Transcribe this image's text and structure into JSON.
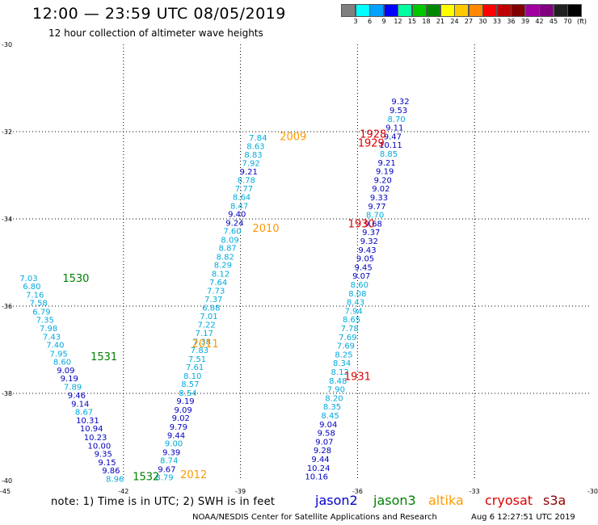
{
  "header": {
    "title": "12:00 — 23:59 UTC 08/05/2019",
    "subtitle": "12 hour collection of altimeter wave heights"
  },
  "color_scale": {
    "colors": [
      "#808080",
      "#00ffff",
      "#00a0ff",
      "#0000ff",
      "#00ffa0",
      "#00c800",
      "#008800",
      "#ffff00",
      "#ffc800",
      "#ff8800",
      "#ff0000",
      "#c00000",
      "#800000",
      "#a000a0",
      "#800080",
      "#202020",
      "#000000"
    ],
    "labels": [
      "3",
      "6",
      "9",
      "12",
      "15",
      "18",
      "21",
      "24",
      "27",
      "30",
      "33",
      "36",
      "39",
      "42",
      "45",
      "70",
      "(ft)"
    ]
  },
  "footer": {
    "note": "note:  1)  Time is in UTC;  2)  SWH is in feet",
    "legend": [
      {
        "name": "jason2",
        "color": "#0000c8"
      },
      {
        "name": "jason3",
        "color": "#008000"
      },
      {
        "name": "altika",
        "color": "#ff9900"
      },
      {
        "name": "cryosat",
        "color": "#dd0000"
      },
      {
        "name": "s3a",
        "color": "#8b0000"
      }
    ],
    "credit": "NOAA/NESDIS Center for Satellite Applications and Research",
    "timestamp": "Aug  6 12:27:51 UTC 2019"
  },
  "chart_data": {
    "type": "scatter",
    "xlim": [
      -45,
      -30
    ],
    "ylim": [
      -40,
      -30
    ],
    "xticks": [
      -45,
      -42,
      -39,
      -36,
      -33,
      -30
    ],
    "yticks": [
      -30,
      -32,
      -34,
      -36,
      -38,
      -40
    ],
    "grid": true,
    "colors": {
      "light": "#00aadd",
      "dark": "#0000c0",
      "green": "#008000",
      "orange": "#ff9900",
      "red": "#dd0000"
    },
    "tracks": [
      {
        "values": [
          {
            "x": -44.43,
            "y": -35.35,
            "v": "7.03",
            "c": "light"
          },
          {
            "x": -44.35,
            "y": -35.54,
            "v": "6.80",
            "c": "light"
          },
          {
            "x": -44.27,
            "y": -35.73,
            "v": "7.16",
            "c": "light"
          },
          {
            "x": -44.18,
            "y": -35.92,
            "v": "7.58",
            "c": "light"
          },
          {
            "x": -44.1,
            "y": -36.12,
            "v": "6.79",
            "c": "light"
          },
          {
            "x": -44.01,
            "y": -36.31,
            "v": "7.35",
            "c": "light"
          },
          {
            "x": -43.92,
            "y": -36.5,
            "v": "7.98",
            "c": "light"
          },
          {
            "x": -43.84,
            "y": -36.69,
            "v": "7.43",
            "c": "light"
          },
          {
            "x": -43.75,
            "y": -36.88,
            "v": "7.40",
            "c": "light"
          },
          {
            "x": -43.66,
            "y": -37.08,
            "v": "7.95",
            "c": "light"
          },
          {
            "x": -43.57,
            "y": -37.27,
            "v": "8.60",
            "c": "light"
          },
          {
            "x": -43.48,
            "y": -37.46,
            "v": "9.09",
            "c": "dark"
          },
          {
            "x": -43.39,
            "y": -37.65,
            "v": "9.19",
            "c": "dark"
          },
          {
            "x": -43.3,
            "y": -37.84,
            "v": "7.89",
            "c": "light"
          },
          {
            "x": -43.2,
            "y": -38.04,
            "v": "9.46",
            "c": "dark"
          },
          {
            "x": -43.11,
            "y": -38.23,
            "v": "9.14",
            "c": "dark"
          },
          {
            "x": -43.01,
            "y": -38.42,
            "v": "8.67",
            "c": "light"
          },
          {
            "x": -42.92,
            "y": -38.61,
            "v": "10.31",
            "c": "dark"
          },
          {
            "x": -42.82,
            "y": -38.8,
            "v": "10.94",
            "c": "dark"
          },
          {
            "x": -42.72,
            "y": -39.0,
            "v": "10.23",
            "c": "dark"
          },
          {
            "x": -42.62,
            "y": -39.19,
            "v": "10.00",
            "c": "dark"
          },
          {
            "x": -42.52,
            "y": -39.38,
            "v": "9.35",
            "c": "dark"
          },
          {
            "x": -42.42,
            "y": -39.57,
            "v": "9.15",
            "c": "dark"
          },
          {
            "x": -42.32,
            "y": -39.76,
            "v": "9.86",
            "c": "dark"
          },
          {
            "x": -42.22,
            "y": -39.95,
            "v": "8.96",
            "c": "light"
          }
        ]
      },
      {
        "values": [
          {
            "x": -40.95,
            "y": -39.92,
            "v": "8.79",
            "c": "light"
          },
          {
            "x": -40.89,
            "y": -39.73,
            "v": "9.67",
            "c": "dark"
          },
          {
            "x": -40.83,
            "y": -39.53,
            "v": "8.74",
            "c": "light"
          },
          {
            "x": -40.77,
            "y": -39.34,
            "v": "9.39",
            "c": "dark"
          },
          {
            "x": -40.71,
            "y": -39.14,
            "v": "9.00",
            "c": "light"
          },
          {
            "x": -40.65,
            "y": -38.95,
            "v": "9.44",
            "c": "dark"
          },
          {
            "x": -40.59,
            "y": -38.76,
            "v": "9.79",
            "c": "dark"
          },
          {
            "x": -40.53,
            "y": -38.56,
            "v": "9.02",
            "c": "dark"
          },
          {
            "x": -40.47,
            "y": -38.37,
            "v": "9.09",
            "c": "dark"
          },
          {
            "x": -40.41,
            "y": -38.17,
            "v": "9.19",
            "c": "dark"
          },
          {
            "x": -40.35,
            "y": -37.98,
            "v": "8.54",
            "c": "light"
          },
          {
            "x": -40.29,
            "y": -37.78,
            "v": "8.57",
            "c": "light"
          },
          {
            "x": -40.23,
            "y": -37.59,
            "v": "8.10",
            "c": "light"
          },
          {
            "x": -40.17,
            "y": -37.39,
            "v": "7.61",
            "c": "light"
          },
          {
            "x": -40.11,
            "y": -37.2,
            "v": "7.51",
            "c": "light"
          },
          {
            "x": -40.05,
            "y": -37.0,
            "v": "7.83",
            "c": "light"
          },
          {
            "x": -39.99,
            "y": -36.81,
            "v": "7.38",
            "c": "light"
          },
          {
            "x": -39.93,
            "y": -36.61,
            "v": "7.17",
            "c": "light"
          },
          {
            "x": -39.87,
            "y": -36.42,
            "v": "7.22",
            "c": "light"
          },
          {
            "x": -39.81,
            "y": -36.22,
            "v": "7.01",
            "c": "light"
          },
          {
            "x": -39.75,
            "y": -36.03,
            "v": "6.88",
            "c": "light"
          },
          {
            "x": -39.69,
            "y": -35.83,
            "v": "7.37",
            "c": "light"
          },
          {
            "x": -39.63,
            "y": -35.64,
            "v": "7.73",
            "c": "light"
          },
          {
            "x": -39.57,
            "y": -35.44,
            "v": "7.64",
            "c": "light"
          },
          {
            "x": -39.51,
            "y": -35.25,
            "v": "8.12",
            "c": "light"
          },
          {
            "x": -39.45,
            "y": -35.05,
            "v": "8.29",
            "c": "light"
          },
          {
            "x": -39.39,
            "y": -34.86,
            "v": "8.82",
            "c": "light"
          },
          {
            "x": -39.33,
            "y": -34.66,
            "v": "8.87",
            "c": "light"
          },
          {
            "x": -39.27,
            "y": -34.47,
            "v": "8.09",
            "c": "light"
          },
          {
            "x": -39.21,
            "y": -34.27,
            "v": "7.60",
            "c": "light"
          },
          {
            "x": -39.15,
            "y": -34.08,
            "v": "9.24",
            "c": "dark"
          },
          {
            "x": -39.09,
            "y": -33.88,
            "v": "9.40",
            "c": "dark"
          },
          {
            "x": -39.03,
            "y": -33.69,
            "v": "8.47",
            "c": "light"
          },
          {
            "x": -38.97,
            "y": -33.49,
            "v": "8.64",
            "c": "light"
          },
          {
            "x": -38.91,
            "y": -33.3,
            "v": "7.77",
            "c": "light"
          },
          {
            "x": -38.85,
            "y": -33.1,
            "v": "8.78",
            "c": "light"
          },
          {
            "x": -38.79,
            "y": -32.91,
            "v": "9.21",
            "c": "dark"
          },
          {
            "x": -38.73,
            "y": -32.71,
            "v": "7.92",
            "c": "light"
          },
          {
            "x": -38.67,
            "y": -32.52,
            "v": "8.83",
            "c": "light"
          },
          {
            "x": -38.61,
            "y": -32.32,
            "v": "8.63",
            "c": "light"
          },
          {
            "x": -38.55,
            "y": -32.13,
            "v": "7.84",
            "c": "light"
          }
        ]
      },
      {
        "values": [
          {
            "x": -37.05,
            "y": -39.9,
            "v": "10.16",
            "c": "dark"
          },
          {
            "x": -37.0,
            "y": -39.7,
            "v": "10.24",
            "c": "dark"
          },
          {
            "x": -36.95,
            "y": -39.5,
            "v": "9.44",
            "c": "dark"
          },
          {
            "x": -36.9,
            "y": -39.3,
            "v": "9.28",
            "c": "dark"
          },
          {
            "x": -36.85,
            "y": -39.1,
            "v": "9.07",
            "c": "dark"
          },
          {
            "x": -36.8,
            "y": -38.9,
            "v": "9.58",
            "c": "dark"
          },
          {
            "x": -36.75,
            "y": -38.7,
            "v": "9.04",
            "c": "dark"
          },
          {
            "x": -36.7,
            "y": -38.5,
            "v": "8.45",
            "c": "light"
          },
          {
            "x": -36.65,
            "y": -38.3,
            "v": "8.35",
            "c": "light"
          },
          {
            "x": -36.6,
            "y": -38.1,
            "v": "8.20",
            "c": "light"
          },
          {
            "x": -36.55,
            "y": -37.9,
            "v": "7.90",
            "c": "light"
          },
          {
            "x": -36.5,
            "y": -37.7,
            "v": "8.48",
            "c": "light"
          },
          {
            "x": -36.45,
            "y": -37.5,
            "v": "8.12",
            "c": "light"
          },
          {
            "x": -36.4,
            "y": -37.3,
            "v": "8.34",
            "c": "light"
          },
          {
            "x": -36.35,
            "y": -37.1,
            "v": "8.25",
            "c": "light"
          },
          {
            "x": -36.3,
            "y": -36.9,
            "v": "7.69",
            "c": "light"
          },
          {
            "x": -36.25,
            "y": -36.7,
            "v": "7.69",
            "c": "light"
          },
          {
            "x": -36.2,
            "y": -36.5,
            "v": "7.78",
            "c": "light"
          },
          {
            "x": -36.15,
            "y": -36.3,
            "v": "8.65",
            "c": "light"
          },
          {
            "x": -36.1,
            "y": -36.1,
            "v": "7.94",
            "c": "light"
          },
          {
            "x": -36.05,
            "y": -35.9,
            "v": "8.43",
            "c": "light"
          },
          {
            "x": -36.0,
            "y": -35.7,
            "v": "8.08",
            "c": "light"
          },
          {
            "x": -35.95,
            "y": -35.5,
            "v": "8.60",
            "c": "light"
          },
          {
            "x": -35.9,
            "y": -35.3,
            "v": "9.07",
            "c": "dark"
          },
          {
            "x": -35.85,
            "y": -35.1,
            "v": "9.45",
            "c": "dark"
          },
          {
            "x": -35.8,
            "y": -34.9,
            "v": "9.05",
            "c": "dark"
          },
          {
            "x": -35.75,
            "y": -34.7,
            "v": "9.43",
            "c": "dark"
          },
          {
            "x": -35.7,
            "y": -34.5,
            "v": "9.32",
            "c": "dark"
          },
          {
            "x": -35.65,
            "y": -34.3,
            "v": "9.37",
            "c": "dark"
          },
          {
            "x": -35.6,
            "y": -34.1,
            "v": "9.68",
            "c": "dark"
          },
          {
            "x": -35.55,
            "y": -33.9,
            "v": "8.70",
            "c": "light"
          },
          {
            "x": -35.5,
            "y": -33.7,
            "v": "9.77",
            "c": "dark"
          },
          {
            "x": -35.45,
            "y": -33.5,
            "v": "9.33",
            "c": "dark"
          },
          {
            "x": -35.4,
            "y": -33.3,
            "v": "9.02",
            "c": "dark"
          },
          {
            "x": -35.35,
            "y": -33.1,
            "v": "9.20",
            "c": "dark"
          },
          {
            "x": -35.3,
            "y": -32.9,
            "v": "9.19",
            "c": "dark"
          },
          {
            "x": -35.25,
            "y": -32.7,
            "v": "9.21",
            "c": "dark"
          },
          {
            "x": -35.2,
            "y": -32.5,
            "v": "8.85",
            "c": "light"
          },
          {
            "x": -35.15,
            "y": -32.3,
            "v": "10.11",
            "c": "dark"
          },
          {
            "x": -35.1,
            "y": -32.1,
            "v": "9.47",
            "c": "dark"
          },
          {
            "x": -35.05,
            "y": -31.9,
            "v": "9.11",
            "c": "dark"
          },
          {
            "x": -35.0,
            "y": -31.7,
            "v": "8.70",
            "c": "light"
          },
          {
            "x": -34.95,
            "y": -31.5,
            "v": "9.53",
            "c": "dark"
          },
          {
            "x": -34.9,
            "y": -31.3,
            "v": "9.32",
            "c": "dark"
          }
        ]
      }
    ],
    "time_labels": [
      {
        "x": -43.22,
        "y": -35.35,
        "text": "1530",
        "c": "green"
      },
      {
        "x": -42.5,
        "y": -37.15,
        "text": "1531",
        "c": "green"
      },
      {
        "x": -41.42,
        "y": -39.9,
        "text": "1532",
        "c": "green"
      },
      {
        "x": -37.65,
        "y": -32.1,
        "text": "2009",
        "c": "orange"
      },
      {
        "x": -38.35,
        "y": -34.2,
        "text": "2010",
        "c": "orange"
      },
      {
        "x": -39.9,
        "y": -36.85,
        "text": "2011",
        "c": "orange"
      },
      {
        "x": -40.2,
        "y": -39.85,
        "text": "2012",
        "c": "orange"
      },
      {
        "x": -35.6,
        "y": -32.05,
        "text": "1928",
        "c": "red"
      },
      {
        "x": -35.65,
        "y": -32.25,
        "text": "1929",
        "c": "red"
      },
      {
        "x": -35.9,
        "y": -34.1,
        "text": "1930",
        "c": "red"
      },
      {
        "x": -36.0,
        "y": -37.6,
        "text": "1931",
        "c": "red"
      }
    ]
  }
}
